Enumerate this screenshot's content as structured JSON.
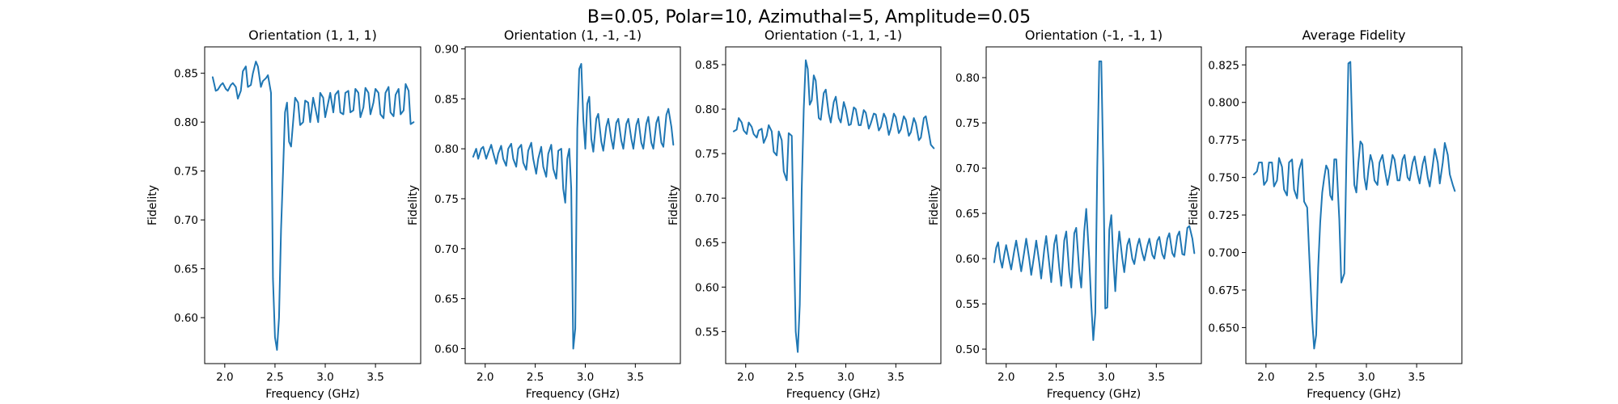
{
  "figure": {
    "suptitle": "B=0.05, Polar=10, Azimuthal=5, Amplitude=0.05",
    "line_color": "#1f77b4"
  },
  "chart_data": [
    {
      "type": "line",
      "title": "Orientation (1, 1, 1)",
      "xlabel": "Frequency (GHz)",
      "ylabel": "Fidelity",
      "xlim": [
        1.8,
        3.95
      ],
      "ylim": [
        0.553,
        0.877
      ],
      "xticks": [
        2.0,
        2.5,
        3.0,
        3.5
      ],
      "xtick_labels": [
        "2.0",
        "2.5",
        "3.0",
        "3.5"
      ],
      "yticks": [
        0.6,
        0.65,
        0.7,
        0.75,
        0.8,
        0.85
      ],
      "ytick_labels": [
        "0.60",
        "0.65",
        "0.70",
        "0.75",
        "0.80",
        "0.85"
      ],
      "grid": false,
      "series": [
        {
          "x": [
            1.88,
            1.91,
            1.93,
            1.96,
            1.98,
            2.01,
            2.03,
            2.06,
            2.08,
            2.11,
            2.13,
            2.16,
            2.18,
            2.21,
            2.23,
            2.26,
            2.28,
            2.31,
            2.33,
            2.36,
            2.38,
            2.41,
            2.43,
            2.46,
            2.48,
            2.5,
            2.52,
            2.54,
            2.56,
            2.58,
            2.6,
            2.62,
            2.64,
            2.66,
            2.68,
            2.7,
            2.73,
            2.75,
            2.78,
            2.8,
            2.83,
            2.85,
            2.88,
            2.9,
            2.93,
            2.95,
            2.98,
            3.0,
            3.03,
            3.05,
            3.08,
            3.1,
            3.13,
            3.15,
            3.18,
            3.2,
            3.23,
            3.25,
            3.28,
            3.3,
            3.33,
            3.35,
            3.38,
            3.4,
            3.43,
            3.45,
            3.48,
            3.5,
            3.53,
            3.55,
            3.58,
            3.6,
            3.63,
            3.65,
            3.68,
            3.7,
            3.73,
            3.75,
            3.78,
            3.8,
            3.83,
            3.85,
            3.88
          ],
          "y": [
            0.846,
            0.832,
            0.833,
            0.838,
            0.84,
            0.834,
            0.832,
            0.838,
            0.84,
            0.836,
            0.824,
            0.832,
            0.852,
            0.857,
            0.836,
            0.838,
            0.85,
            0.862,
            0.857,
            0.836,
            0.842,
            0.845,
            0.848,
            0.83,
            0.64,
            0.58,
            0.567,
            0.6,
            0.69,
            0.75,
            0.81,
            0.82,
            0.78,
            0.775,
            0.8,
            0.825,
            0.82,
            0.797,
            0.8,
            0.822,
            0.82,
            0.8,
            0.825,
            0.815,
            0.8,
            0.83,
            0.825,
            0.805,
            0.82,
            0.83,
            0.81,
            0.828,
            0.832,
            0.81,
            0.808,
            0.83,
            0.832,
            0.81,
            0.812,
            0.834,
            0.83,
            0.805,
            0.815,
            0.835,
            0.83,
            0.808,
            0.82,
            0.834,
            0.83,
            0.808,
            0.804,
            0.83,
            0.836,
            0.81,
            0.806,
            0.828,
            0.834,
            0.808,
            0.812,
            0.839,
            0.832,
            0.798,
            0.8
          ]
        }
      ]
    },
    {
      "type": "line",
      "title": "Orientation (1, -1, -1)",
      "xlabel": "Frequency (GHz)",
      "ylabel": "Fidelity",
      "xlim": [
        1.8,
        3.95
      ],
      "ylim": [
        0.585,
        0.902
      ],
      "xticks": [
        2.0,
        2.5,
        3.0,
        3.5
      ],
      "xtick_labels": [
        "2.0",
        "2.5",
        "3.0",
        "3.5"
      ],
      "yticks": [
        0.6,
        0.65,
        0.7,
        0.75,
        0.8,
        0.85,
        0.9
      ],
      "ytick_labels": [
        "0.60",
        "0.65",
        "0.70",
        "0.75",
        "0.80",
        "0.85",
        "0.90"
      ],
      "grid": false,
      "series": [
        {
          "x": [
            1.88,
            1.91,
            1.93,
            1.96,
            1.98,
            2.01,
            2.03,
            2.06,
            2.08,
            2.11,
            2.13,
            2.16,
            2.18,
            2.21,
            2.23,
            2.26,
            2.28,
            2.31,
            2.33,
            2.36,
            2.38,
            2.41,
            2.43,
            2.46,
            2.48,
            2.51,
            2.53,
            2.56,
            2.58,
            2.61,
            2.63,
            2.66,
            2.68,
            2.71,
            2.73,
            2.76,
            2.78,
            2.8,
            2.82,
            2.84,
            2.86,
            2.88,
            2.9,
            2.92,
            2.94,
            2.96,
            2.98,
            3.0,
            3.02,
            3.04,
            3.06,
            3.08,
            3.11,
            3.13,
            3.16,
            3.18,
            3.21,
            3.23,
            3.26,
            3.28,
            3.31,
            3.33,
            3.36,
            3.38,
            3.41,
            3.43,
            3.46,
            3.48,
            3.51,
            3.53,
            3.56,
            3.58,
            3.61,
            3.63,
            3.66,
            3.68,
            3.71,
            3.73,
            3.76,
            3.78,
            3.81,
            3.83,
            3.86,
            3.88
          ],
          "y": [
            0.792,
            0.8,
            0.79,
            0.8,
            0.802,
            0.79,
            0.796,
            0.804,
            0.796,
            0.785,
            0.795,
            0.803,
            0.79,
            0.783,
            0.8,
            0.805,
            0.79,
            0.782,
            0.8,
            0.804,
            0.786,
            0.779,
            0.798,
            0.806,
            0.79,
            0.775,
            0.79,
            0.802,
            0.782,
            0.772,
            0.795,
            0.804,
            0.78,
            0.77,
            0.798,
            0.8,
            0.76,
            0.746,
            0.79,
            0.8,
            0.76,
            0.6,
            0.62,
            0.82,
            0.88,
            0.885,
            0.83,
            0.8,
            0.845,
            0.852,
            0.81,
            0.797,
            0.83,
            0.835,
            0.807,
            0.798,
            0.822,
            0.83,
            0.81,
            0.8,
            0.826,
            0.83,
            0.808,
            0.8,
            0.825,
            0.83,
            0.81,
            0.8,
            0.824,
            0.83,
            0.806,
            0.8,
            0.825,
            0.832,
            0.806,
            0.8,
            0.826,
            0.832,
            0.806,
            0.802,
            0.834,
            0.84,
            0.822,
            0.804
          ]
        }
      ]
    },
    {
      "type": "line",
      "title": "Orientation (-1, 1, -1)",
      "xlabel": "Frequency (GHz)",
      "ylabel": "Fidelity",
      "xlim": [
        1.8,
        3.95
      ],
      "ylim": [
        0.514,
        0.87
      ],
      "xticks": [
        2.0,
        2.5,
        3.0,
        3.5
      ],
      "xtick_labels": [
        "2.0",
        "2.5",
        "3.0",
        "3.5"
      ],
      "yticks": [
        0.55,
        0.6,
        0.65,
        0.7,
        0.75,
        0.8,
        0.85
      ],
      "ytick_labels": [
        "0.55",
        "0.60",
        "0.65",
        "0.70",
        "0.75",
        "0.80",
        "0.85"
      ],
      "grid": false,
      "series": [
        {
          "x": [
            1.88,
            1.91,
            1.93,
            1.96,
            1.98,
            2.01,
            2.03,
            2.06,
            2.08,
            2.11,
            2.13,
            2.16,
            2.18,
            2.21,
            2.23,
            2.26,
            2.28,
            2.31,
            2.33,
            2.36,
            2.38,
            2.41,
            2.43,
            2.46,
            2.48,
            2.5,
            2.52,
            2.54,
            2.56,
            2.58,
            2.6,
            2.62,
            2.64,
            2.66,
            2.68,
            2.7,
            2.73,
            2.75,
            2.78,
            2.8,
            2.83,
            2.85,
            2.88,
            2.9,
            2.93,
            2.95,
            2.98,
            3.0,
            3.03,
            3.05,
            3.08,
            3.1,
            3.13,
            3.15,
            3.18,
            3.2,
            3.23,
            3.25,
            3.28,
            3.3,
            3.33,
            3.35,
            3.38,
            3.4,
            3.43,
            3.45,
            3.48,
            3.5,
            3.53,
            3.55,
            3.58,
            3.6,
            3.63,
            3.65,
            3.68,
            3.7,
            3.73,
            3.75,
            3.78,
            3.8,
            3.83,
            3.85,
            3.88
          ],
          "y": [
            0.775,
            0.777,
            0.79,
            0.785,
            0.776,
            0.772,
            0.785,
            0.78,
            0.772,
            0.768,
            0.776,
            0.778,
            0.762,
            0.77,
            0.782,
            0.775,
            0.752,
            0.748,
            0.775,
            0.765,
            0.73,
            0.72,
            0.773,
            0.77,
            0.66,
            0.55,
            0.527,
            0.58,
            0.71,
            0.8,
            0.855,
            0.845,
            0.805,
            0.81,
            0.838,
            0.832,
            0.79,
            0.788,
            0.818,
            0.822,
            0.795,
            0.785,
            0.808,
            0.814,
            0.79,
            0.785,
            0.808,
            0.8,
            0.782,
            0.783,
            0.802,
            0.8,
            0.782,
            0.782,
            0.799,
            0.796,
            0.778,
            0.784,
            0.795,
            0.794,
            0.776,
            0.78,
            0.795,
            0.79,
            0.771,
            0.778,
            0.795,
            0.791,
            0.773,
            0.777,
            0.792,
            0.788,
            0.77,
            0.774,
            0.79,
            0.784,
            0.765,
            0.768,
            0.79,
            0.792,
            0.773,
            0.76,
            0.756
          ]
        }
      ]
    },
    {
      "type": "line",
      "title": "Orientation (-1, -1, 1)",
      "xlabel": "Frequency (GHz)",
      "ylabel": "Fidelity",
      "xlim": [
        1.8,
        3.95
      ],
      "ylim": [
        0.484,
        0.834
      ],
      "xticks": [
        2.0,
        2.5,
        3.0,
        3.5
      ],
      "xtick_labels": [
        "2.0",
        "2.5",
        "3.0",
        "3.5"
      ],
      "yticks": [
        0.5,
        0.55,
        0.6,
        0.65,
        0.7,
        0.75,
        0.8
      ],
      "ytick_labels": [
        "0.50",
        "0.55",
        "0.60",
        "0.65",
        "0.70",
        "0.75",
        "0.80"
      ],
      "grid": false,
      "series": [
        {
          "x": [
            1.88,
            1.9,
            1.92,
            1.94,
            1.96,
            1.98,
            2.0,
            2.03,
            2.05,
            2.08,
            2.1,
            2.13,
            2.15,
            2.18,
            2.2,
            2.23,
            2.25,
            2.28,
            2.3,
            2.33,
            2.35,
            2.38,
            2.4,
            2.43,
            2.45,
            2.48,
            2.5,
            2.53,
            2.55,
            2.58,
            2.6,
            2.63,
            2.65,
            2.68,
            2.7,
            2.73,
            2.75,
            2.78,
            2.8,
            2.83,
            2.85,
            2.87,
            2.89,
            2.91,
            2.93,
            2.95,
            2.97,
            2.99,
            3.01,
            3.03,
            3.05,
            3.07,
            3.09,
            3.11,
            3.13,
            3.16,
            3.18,
            3.21,
            3.23,
            3.26,
            3.28,
            3.31,
            3.33,
            3.36,
            3.38,
            3.41,
            3.43,
            3.46,
            3.48,
            3.51,
            3.53,
            3.56,
            3.58,
            3.61,
            3.63,
            3.66,
            3.68,
            3.71,
            3.73,
            3.76,
            3.78,
            3.81,
            3.83,
            3.86,
            3.88
          ],
          "y": [
            0.596,
            0.612,
            0.618,
            0.6,
            0.59,
            0.604,
            0.615,
            0.598,
            0.588,
            0.608,
            0.62,
            0.6,
            0.586,
            0.607,
            0.622,
            0.6,
            0.582,
            0.604,
            0.62,
            0.596,
            0.578,
            0.61,
            0.625,
            0.595,
            0.574,
            0.616,
            0.626,
            0.59,
            0.57,
            0.62,
            0.63,
            0.585,
            0.568,
            0.628,
            0.634,
            0.586,
            0.568,
            0.63,
            0.655,
            0.6,
            0.55,
            0.51,
            0.54,
            0.7,
            0.818,
            0.818,
            0.7,
            0.545,
            0.546,
            0.632,
            0.648,
            0.6,
            0.564,
            0.605,
            0.63,
            0.6,
            0.585,
            0.615,
            0.622,
            0.6,
            0.594,
            0.614,
            0.622,
            0.606,
            0.598,
            0.614,
            0.622,
            0.604,
            0.6,
            0.62,
            0.624,
            0.605,
            0.6,
            0.622,
            0.628,
            0.606,
            0.602,
            0.625,
            0.63,
            0.605,
            0.604,
            0.634,
            0.636,
            0.622,
            0.606
          ]
        }
      ]
    },
    {
      "type": "line",
      "title": "Average Fidelity",
      "xlabel": "Frequency (GHz)",
      "ylabel": "Fidelity",
      "xlim": [
        1.8,
        3.95
      ],
      "ylim": [
        0.626,
        0.837
      ],
      "xticks": [
        2.0,
        2.5,
        3.0,
        3.5
      ],
      "xtick_labels": [
        "2.0",
        "2.5",
        "3.0",
        "3.5"
      ],
      "yticks": [
        0.65,
        0.675,
        0.7,
        0.725,
        0.75,
        0.775,
        0.8,
        0.825
      ],
      "ytick_labels": [
        "0.650",
        "0.675",
        "0.700",
        "0.725",
        "0.750",
        "0.775",
        "0.800",
        "0.825"
      ],
      "grid": false,
      "series": [
        {
          "x": [
            1.88,
            1.91,
            1.93,
            1.96,
            1.98,
            2.01,
            2.03,
            2.06,
            2.08,
            2.11,
            2.13,
            2.16,
            2.18,
            2.21,
            2.23,
            2.26,
            2.28,
            2.31,
            2.33,
            2.36,
            2.38,
            2.41,
            2.43,
            2.46,
            2.48,
            2.5,
            2.52,
            2.54,
            2.56,
            2.58,
            2.6,
            2.62,
            2.64,
            2.66,
            2.68,
            2.7,
            2.73,
            2.75,
            2.78,
            2.8,
            2.82,
            2.84,
            2.86,
            2.88,
            2.9,
            2.92,
            2.94,
            2.96,
            2.98,
            3.0,
            3.02,
            3.04,
            3.06,
            3.08,
            3.11,
            3.13,
            3.16,
            3.18,
            3.21,
            3.23,
            3.26,
            3.28,
            3.31,
            3.33,
            3.36,
            3.38,
            3.41,
            3.43,
            3.46,
            3.48,
            3.51,
            3.53,
            3.56,
            3.58,
            3.61,
            3.63,
            3.66,
            3.68,
            3.71,
            3.73,
            3.76,
            3.78,
            3.81,
            3.83,
            3.86,
            3.88
          ],
          "y": [
            0.752,
            0.754,
            0.76,
            0.76,
            0.745,
            0.748,
            0.76,
            0.76,
            0.744,
            0.748,
            0.763,
            0.757,
            0.742,
            0.738,
            0.76,
            0.762,
            0.742,
            0.736,
            0.755,
            0.762,
            0.734,
            0.73,
            0.7,
            0.655,
            0.636,
            0.645,
            0.69,
            0.72,
            0.74,
            0.75,
            0.758,
            0.755,
            0.738,
            0.735,
            0.762,
            0.762,
            0.722,
            0.68,
            0.686,
            0.76,
            0.826,
            0.827,
            0.78,
            0.745,
            0.74,
            0.76,
            0.774,
            0.772,
            0.75,
            0.742,
            0.755,
            0.765,
            0.76,
            0.748,
            0.745,
            0.76,
            0.765,
            0.756,
            0.745,
            0.752,
            0.765,
            0.762,
            0.748,
            0.748,
            0.762,
            0.765,
            0.75,
            0.748,
            0.76,
            0.764,
            0.752,
            0.746,
            0.759,
            0.764,
            0.75,
            0.744,
            0.758,
            0.769,
            0.76,
            0.746,
            0.76,
            0.773,
            0.765,
            0.752,
            0.745,
            0.741
          ]
        }
      ]
    }
  ]
}
